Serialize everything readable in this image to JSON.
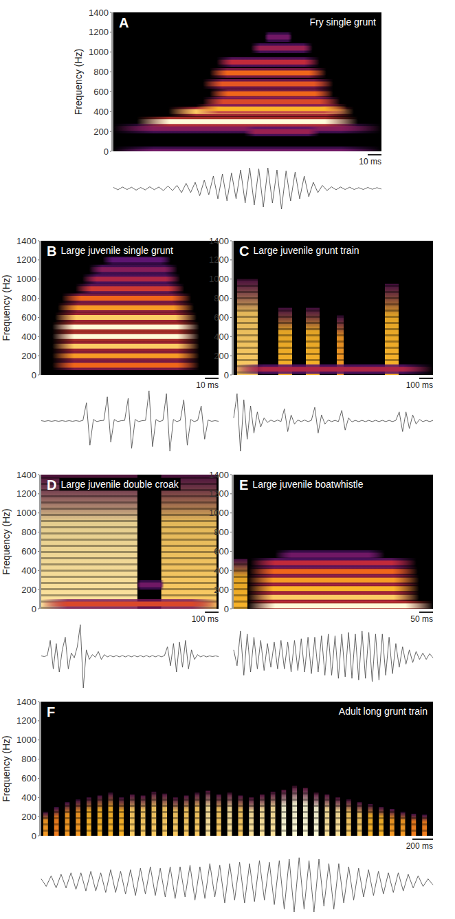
{
  "chart_data": [
    {
      "type": "spectrogram",
      "panel": "A",
      "title": "Fry single grunt",
      "ylabel": "Frequency (Hz)",
      "xlim": [
        0,
        195
      ],
      "ylim": [
        0,
        1400
      ],
      "yticks": [
        0,
        200,
        400,
        600,
        800,
        1000,
        1200,
        1400
      ],
      "tick_labels": "y",
      "scale_bar": {
        "value": 10,
        "label": "10 ms"
      },
      "bands": [
        {
          "freq": 0,
          "start": 0,
          "end": 195,
          "level": 0.3
        },
        {
          "freq": 230,
          "start": 0,
          "end": 195,
          "level": 0.35
        },
        {
          "freq": 200,
          "start": 95,
          "end": 150,
          "level": 0.4
        },
        {
          "freq": 300,
          "start": 17,
          "end": 178,
          "level": 1.0
        },
        {
          "freq": 400,
          "start": 40,
          "end": 175,
          "level": 0.9
        },
        {
          "freq": 430,
          "start": 60,
          "end": 170,
          "level": 0.85
        },
        {
          "freq": 500,
          "start": 65,
          "end": 165,
          "level": 0.6
        },
        {
          "freq": 580,
          "start": 70,
          "end": 160,
          "level": 0.7
        },
        {
          "freq": 680,
          "start": 65,
          "end": 160,
          "level": 0.65
        },
        {
          "freq": 790,
          "start": 70,
          "end": 155,
          "level": 0.7
        },
        {
          "freq": 900,
          "start": 75,
          "end": 150,
          "level": 0.5
        },
        {
          "freq": 1040,
          "start": 100,
          "end": 145,
          "level": 0.4
        },
        {
          "freq": 1150,
          "start": 110,
          "end": 130,
          "level": 0.3
        }
      ],
      "waveform": [
        0.05,
        -0.06,
        0.07,
        -0.05,
        0.06,
        -0.08,
        0.05,
        -0.07,
        0.08,
        -0.06,
        0.07,
        -0.1,
        0.12,
        -0.1,
        0.15,
        -0.2,
        0.25,
        -0.2,
        0.3,
        -0.35,
        0.4,
        -0.3,
        0.6,
        -0.5,
        0.7,
        -0.6,
        0.75,
        -0.5,
        0.9,
        -0.7,
        1.0,
        -0.8,
        0.95,
        -0.9,
        1.0,
        -0.7,
        0.9,
        -1.0,
        0.85,
        -0.6,
        0.8,
        -0.5,
        0.6,
        -0.4,
        0.3,
        -0.2,
        0.15,
        -0.1,
        0.08,
        -0.06,
        0.07,
        -0.05,
        0.06,
        -0.05,
        0.04,
        -0.05,
        0.05,
        -0.04,
        0.04,
        -0.03
      ]
    },
    {
      "type": "spectrogram",
      "panel": "B",
      "title": "Large juvenile single grunt",
      "ylabel": "Frequency (Hz)",
      "xlim": [
        0,
        130
      ],
      "ylim": [
        0,
        1400
      ],
      "yticks": [
        0,
        200,
        400,
        600,
        800,
        1000,
        1200,
        1400
      ],
      "tick_labels": "y",
      "scale_bar": {
        "value": 10,
        "label": "10 ms"
      },
      "bands": [
        {
          "freq": 100,
          "start": 8,
          "end": 116,
          "level": 0.7
        },
        {
          "freq": 200,
          "start": 8,
          "end": 116,
          "level": 0.8
        },
        {
          "freq": 300,
          "start": 8,
          "end": 116,
          "level": 0.9
        },
        {
          "freq": 400,
          "start": 8,
          "end": 116,
          "level": 1.0
        },
        {
          "freq": 500,
          "start": 8,
          "end": 116,
          "level": 1.0
        },
        {
          "freq": 600,
          "start": 10,
          "end": 114,
          "level": 0.9
        },
        {
          "freq": 700,
          "start": 12,
          "end": 112,
          "level": 0.8
        },
        {
          "freq": 800,
          "start": 15,
          "end": 110,
          "level": 0.7
        },
        {
          "freq": 900,
          "start": 25,
          "end": 105,
          "level": 0.55
        },
        {
          "freq": 1000,
          "start": 30,
          "end": 102,
          "level": 0.45
        },
        {
          "freq": 1100,
          "start": 35,
          "end": 100,
          "level": 0.35
        },
        {
          "freq": 1200,
          "start": 45,
          "end": 95,
          "level": 0.25
        }
      ],
      "waveform": [
        0.01,
        -0.01,
        0.01,
        -0.01,
        0.01,
        -0.01,
        0.01,
        -0.01,
        0.01,
        -0.01,
        0.01,
        -0.01,
        0.02,
        0.6,
        -0.8,
        0.05,
        -0.02,
        0.01,
        0.02,
        0.8,
        -0.7,
        0.05,
        -0.02,
        0.01,
        0.02,
        0.75,
        -0.9,
        0.05,
        -0.02,
        0.01,
        0.02,
        1.0,
        -0.85,
        0.05,
        -0.02,
        0.02,
        0.9,
        -1.0,
        0.05,
        -0.02,
        0.02,
        0.7,
        -0.8,
        0.05,
        -0.02,
        0.02,
        0.5,
        -0.6,
        0.03,
        -0.01,
        0.01,
        -0.01
      ]
    },
    {
      "type": "spectrogram",
      "panel": "C",
      "title": "Large juvenile grunt train",
      "xlim": [
        0,
        1450
      ],
      "ylim": [
        0,
        1400
      ],
      "yticks": [
        0,
        200,
        400,
        600,
        800,
        1000,
        1200,
        1400
      ],
      "tick_labels": "y",
      "scale_bar": {
        "value": 100,
        "label": "100 ms"
      },
      "bands": [
        {
          "freq": 60,
          "start": 0,
          "end": 1450,
          "level": 0.45
        }
      ],
      "pulses": [
        {
          "start": 25,
          "end": 175,
          "fmax": 1000,
          "level": 0.9
        },
        {
          "start": 325,
          "end": 425,
          "fmax": 700,
          "level": 0.85
        },
        {
          "start": 525,
          "end": 625,
          "fmax": 700,
          "level": 0.85
        },
        {
          "start": 750,
          "end": 800,
          "fmax": 620,
          "level": 0.8
        },
        {
          "start": 1100,
          "end": 1200,
          "fmax": 950,
          "level": 0.85
        }
      ],
      "waveform": [
        0.1,
        0.9,
        -1.0,
        0.7,
        -0.6,
        0.5,
        -0.4,
        0.3,
        -0.2,
        0.1,
        -0.05,
        0.03,
        -0.02,
        0.03,
        -0.02,
        0.4,
        -0.35,
        0.2,
        -0.1,
        0.03,
        -0.02,
        0.03,
        -0.02,
        0.02,
        0.45,
        -0.4,
        0.2,
        -0.1,
        0.03,
        -0.02,
        0.02,
        -0.02,
        0.35,
        -0.3,
        0.1,
        -0.03,
        0.02,
        -0.02,
        0.02,
        -0.02,
        0.02,
        -0.02,
        0.02,
        -0.02,
        0.02,
        -0.02,
        0.02,
        -0.02,
        0.02,
        0.3,
        -0.35,
        0.3,
        -0.25,
        0.2,
        -0.1,
        0.05,
        -0.02,
        0.02,
        -0.02,
        0.02
      ]
    },
    {
      "type": "spectrogram",
      "panel": "D",
      "title": "Large juvenile double croak",
      "ylabel": "Frequency (Hz)",
      "xlim": [
        0,
        1300
      ],
      "ylim": [
        0,
        1400
      ],
      "yticks": [
        0,
        200,
        400,
        600,
        800,
        1000,
        1200,
        1400
      ],
      "tick_labels": "y",
      "scale_bar": {
        "value": 100,
        "label": "100 ms"
      },
      "bands": [
        {
          "freq": 50,
          "start": 0,
          "end": 1300,
          "level": 0.6
        },
        {
          "freq": 250,
          "start": 700,
          "end": 900,
          "level": 0.3
        }
      ],
      "pulses": [
        {
          "start": 0,
          "end": 705,
          "fmax": 1400,
          "level": 0.95
        },
        {
          "start": 880,
          "end": 1285,
          "fmax": 1400,
          "level": 0.9
        }
      ],
      "waveform": [
        0.01,
        -0.01,
        0.02,
        0.5,
        -0.4,
        0.4,
        -0.5,
        0.2,
        0.6,
        -0.4,
        0.1,
        -0.05,
        0.3,
        1.0,
        -1.0,
        0.2,
        -0.1,
        0.05,
        -0.03,
        0.15,
        -0.1,
        0.05,
        -0.02,
        0.02,
        -0.02,
        0.02,
        -0.02,
        0.02,
        -0.02,
        0.02,
        -0.02,
        0.02,
        -0.02,
        0.02,
        -0.02,
        0.02,
        -0.02,
        0.02,
        -0.02,
        0.02,
        -0.02,
        0.02,
        0.3,
        -0.3,
        0.4,
        -0.5,
        0.45,
        -0.35,
        0.5,
        -0.4,
        0.2,
        -0.1,
        0.05,
        -0.02,
        0.02,
        -0.02,
        0.01,
        -0.01,
        0.01,
        -0.01
      ]
    },
    {
      "type": "spectrogram",
      "panel": "E",
      "title": "Large juvenile boatwhistle",
      "xlim": [
        0,
        725
      ],
      "ylim": [
        0,
        1400
      ],
      "yticks": [
        0,
        200,
        400,
        600,
        800,
        1000,
        1200,
        1400
      ],
      "tick_labels": "y",
      "scale_bar": {
        "value": 50,
        "label": "50 ms"
      },
      "bands": [
        {
          "freq": 30,
          "start": 50,
          "end": 725,
          "level": 1.0
        },
        {
          "freq": 120,
          "start": 50,
          "end": 675,
          "level": 0.9
        },
        {
          "freq": 210,
          "start": 50,
          "end": 675,
          "level": 0.85
        },
        {
          "freq": 300,
          "start": 50,
          "end": 675,
          "level": 0.8
        },
        {
          "freq": 390,
          "start": 55,
          "end": 670,
          "level": 0.7
        },
        {
          "freq": 480,
          "start": 60,
          "end": 665,
          "level": 0.5
        },
        {
          "freq": 560,
          "start": 150,
          "end": 550,
          "level": 0.3
        }
      ],
      "pulses": [
        {
          "start": 0,
          "end": 50,
          "fmax": 520,
          "level": 0.85
        }
      ],
      "waveform": [
        0.2,
        -0.3,
        0.8,
        -0.6,
        0.7,
        -0.5,
        0.6,
        -0.4,
        0.5,
        -0.45,
        0.4,
        -0.35,
        0.45,
        -0.4,
        0.5,
        -0.4,
        0.45,
        -0.5,
        0.5,
        -0.45,
        0.55,
        -0.5,
        0.6,
        -0.55,
        0.6,
        -0.5,
        0.65,
        -0.6,
        0.7,
        -0.6,
        0.65,
        -0.7,
        0.7,
        -0.65,
        0.75,
        -0.7,
        0.7,
        -0.75,
        0.8,
        -0.7,
        0.75,
        -0.8,
        0.7,
        -0.75,
        0.7,
        -0.6,
        0.6,
        -0.55,
        0.4,
        -0.35,
        0.3,
        -0.25,
        0.2,
        -0.2,
        0.15,
        -0.1,
        0.1,
        -0.1,
        0.08,
        -0.05
      ]
    },
    {
      "type": "spectrogram",
      "panel": "F",
      "title": "Adult long grunt train",
      "ylabel": "Frequency (Hz)",
      "xlim": [
        0,
        3800
      ],
      "ylim": [
        0,
        1400
      ],
      "yticks": [
        0,
        200,
        400,
        600,
        800,
        1000,
        1200,
        1400
      ],
      "tick_labels": "y",
      "scale_bar": {
        "value": 200,
        "label": "200 ms"
      },
      "pulses": [
        {
          "start": 20,
          "end": 65,
          "fmax": 250,
          "level": 0.8
        },
        {
          "start": 125,
          "end": 170,
          "fmax": 300,
          "level": 0.75
        },
        {
          "start": 230,
          "end": 275,
          "fmax": 350,
          "level": 0.8
        },
        {
          "start": 335,
          "end": 380,
          "fmax": 380,
          "level": 0.8
        },
        {
          "start": 440,
          "end": 485,
          "fmax": 400,
          "level": 0.85
        },
        {
          "start": 545,
          "end": 590,
          "fmax": 420,
          "level": 0.85
        },
        {
          "start": 650,
          "end": 695,
          "fmax": 450,
          "level": 0.85
        },
        {
          "start": 755,
          "end": 800,
          "fmax": 400,
          "level": 0.85
        },
        {
          "start": 860,
          "end": 905,
          "fmax": 430,
          "level": 0.9
        },
        {
          "start": 965,
          "end": 1010,
          "fmax": 420,
          "level": 0.9
        },
        {
          "start": 1070,
          "end": 1115,
          "fmax": 460,
          "level": 0.9
        },
        {
          "start": 1175,
          "end": 1220,
          "fmax": 440,
          "level": 0.9
        },
        {
          "start": 1280,
          "end": 1325,
          "fmax": 400,
          "level": 0.9
        },
        {
          "start": 1385,
          "end": 1430,
          "fmax": 420,
          "level": 0.9
        },
        {
          "start": 1490,
          "end": 1535,
          "fmax": 450,
          "level": 0.9
        },
        {
          "start": 1595,
          "end": 1640,
          "fmax": 470,
          "level": 0.95
        },
        {
          "start": 1700,
          "end": 1745,
          "fmax": 430,
          "level": 0.9
        },
        {
          "start": 1805,
          "end": 1850,
          "fmax": 450,
          "level": 0.95
        },
        {
          "start": 1910,
          "end": 1955,
          "fmax": 420,
          "level": 0.9
        },
        {
          "start": 2015,
          "end": 2060,
          "fmax": 400,
          "level": 0.95
        },
        {
          "start": 2120,
          "end": 2165,
          "fmax": 430,
          "level": 0.95
        },
        {
          "start": 2225,
          "end": 2270,
          "fmax": 460,
          "level": 0.95
        },
        {
          "start": 2330,
          "end": 2375,
          "fmax": 480,
          "level": 1.0
        },
        {
          "start": 2435,
          "end": 2480,
          "fmax": 520,
          "level": 1.0
        },
        {
          "start": 2540,
          "end": 2585,
          "fmax": 500,
          "level": 1.0
        },
        {
          "start": 2645,
          "end": 2690,
          "fmax": 450,
          "level": 1.0
        },
        {
          "start": 2750,
          "end": 2795,
          "fmax": 430,
          "level": 0.95
        },
        {
          "start": 2855,
          "end": 2900,
          "fmax": 400,
          "level": 0.95
        },
        {
          "start": 2960,
          "end": 3005,
          "fmax": 380,
          "level": 0.9
        },
        {
          "start": 3065,
          "end": 3110,
          "fmax": 350,
          "level": 0.9
        },
        {
          "start": 3170,
          "end": 3215,
          "fmax": 330,
          "level": 0.85
        },
        {
          "start": 3275,
          "end": 3320,
          "fmax": 300,
          "level": 0.85
        },
        {
          "start": 3380,
          "end": 3425,
          "fmax": 280,
          "level": 0.8
        },
        {
          "start": 3485,
          "end": 3530,
          "fmax": 250,
          "level": 0.8
        },
        {
          "start": 3590,
          "end": 3635,
          "fmax": 230,
          "level": 0.75
        },
        {
          "start": 3695,
          "end": 3740,
          "fmax": 220,
          "level": 0.75
        }
      ],
      "waveform": [
        0.1,
        -0.15,
        0.2,
        -0.2,
        0.25,
        -0.2,
        0.3,
        -0.25,
        0.3,
        -0.3,
        0.35,
        -0.3,
        0.3,
        -0.35,
        0.4,
        -0.35,
        0.35,
        -0.4,
        0.4,
        -0.45,
        0.45,
        -0.4,
        0.5,
        -0.45,
        0.45,
        -0.5,
        0.5,
        -0.55,
        0.5,
        -0.5,
        0.55,
        -0.6,
        0.5,
        -0.55,
        0.6,
        -0.5,
        0.55,
        -0.7,
        0.6,
        -0.6,
        0.65,
        -0.7,
        0.6,
        -0.65,
        0.7,
        -0.6,
        0.65,
        -0.75,
        0.7,
        -0.9,
        0.75,
        -1.0,
        0.8,
        -0.9,
        0.7,
        -1.0,
        0.75,
        -0.8,
        0.6,
        -0.9,
        0.6,
        -0.7,
        0.5,
        -0.6,
        0.45,
        -0.5,
        0.4,
        -0.45,
        0.35,
        -0.4,
        0.3,
        -0.35,
        0.3,
        -0.3,
        0.25,
        -0.2,
        0.2,
        -0.15,
        0.1,
        -0.1
      ]
    }
  ]
}
